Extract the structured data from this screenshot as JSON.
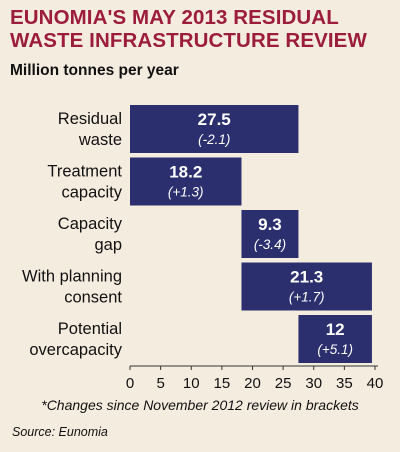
{
  "header": {
    "title": "EUNOMIA'S MAY 2013 RESIDUAL WASTE INFRASTRUCTURE REVIEW",
    "subtitle": "Million tonnes per year"
  },
  "footnote": "*Changes since November 2012 review in brackets",
  "source": "Source: Eunomia",
  "colors": {
    "bar": "#2b2f6e",
    "title": "#9c1c3c",
    "background": "#f5ece0"
  },
  "chart_data": {
    "type": "bar",
    "orientation": "horizontal",
    "categories": [
      [
        "Residual",
        "waste"
      ],
      [
        "Treatment",
        "capacity"
      ],
      [
        "Capacity",
        "gap"
      ],
      [
        "With planning",
        "consent"
      ],
      [
        "Potential",
        "overcapacity"
      ]
    ],
    "bars": [
      {
        "start": 0,
        "end": 27.5,
        "value_label": "27.5",
        "change_label": "(-2.1)"
      },
      {
        "start": 0,
        "end": 18.2,
        "value_label": "18.2",
        "change_label": "(+1.3)"
      },
      {
        "start": 18.2,
        "end": 27.5,
        "value_label": "9.3",
        "change_label": "(-3.4)"
      },
      {
        "start": 18.2,
        "end": 39.5,
        "value_label": "21.3",
        "change_label": "(+1.7)"
      },
      {
        "start": 27.5,
        "end": 39.5,
        "value_label": "12",
        "change_label": "(+5.1)"
      }
    ],
    "xlim": [
      0,
      40
    ],
    "xticks": [
      "0",
      "5",
      "10",
      "15",
      "20",
      "25",
      "30",
      "35",
      "40"
    ],
    "grid": false
  }
}
